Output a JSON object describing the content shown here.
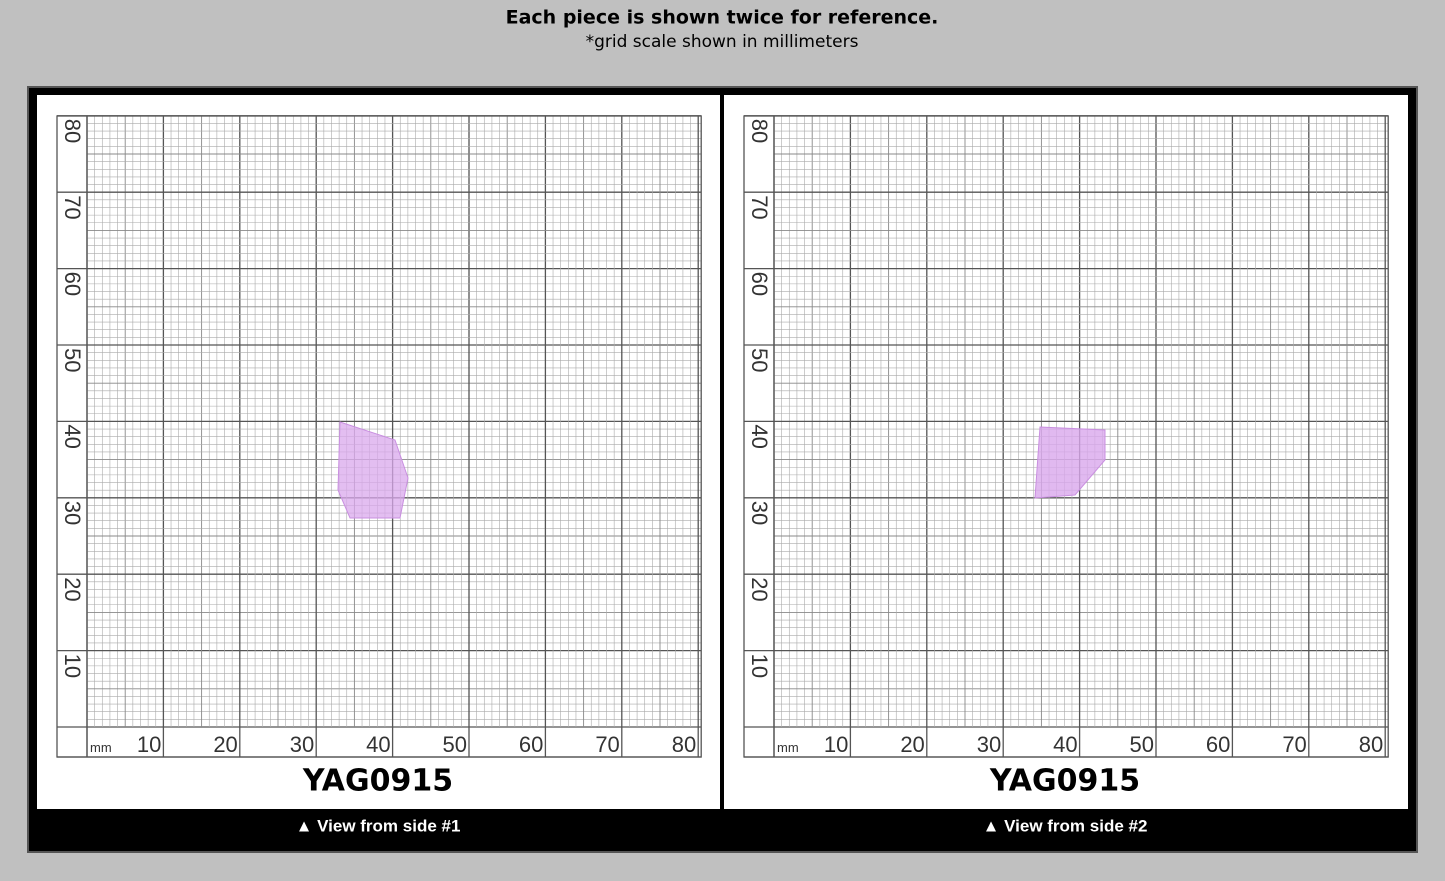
{
  "header": {
    "title": "Each piece is shown twice for reference.",
    "subtitle": "*grid scale shown in millimeters"
  },
  "panels": [
    {
      "grid": {
        "unit": "mm",
        "x_labels": [
          "10",
          "20",
          "30",
          "40",
          "50",
          "60",
          "70",
          "80"
        ],
        "y_labels": [
          "10",
          "20",
          "30",
          "40",
          "50",
          "60",
          "70",
          "80"
        ]
      },
      "sample_id": "YAG0915",
      "caption": "▲ View from side #1"
    },
    {
      "grid": {
        "unit": "mm",
        "x_labels": [
          "10",
          "20",
          "30",
          "40",
          "50",
          "60",
          "70",
          "80"
        ],
        "y_labels": [
          "10",
          "20",
          "30",
          "40",
          "50",
          "60",
          "70",
          "80"
        ]
      },
      "sample_id": "YAG0915",
      "caption": "▲ View from side #2"
    }
  ]
}
